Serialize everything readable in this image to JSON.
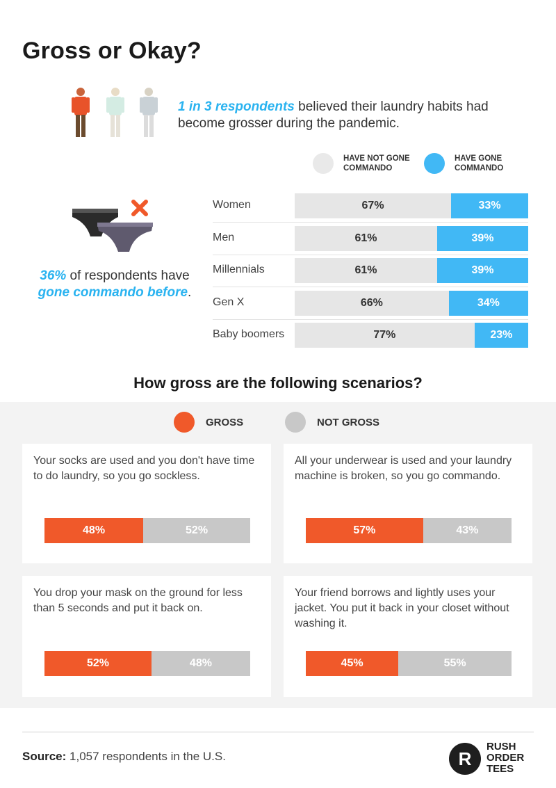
{
  "title": "Gross or Okay?",
  "intro": {
    "highlight": "1 in 3 respondents",
    "rest": " believed their laundry habits had become grosser during the pandemic."
  },
  "legend_top": {
    "not_gone": "HAVE NOT GONE COMMANDO",
    "gone": "HAVE GONE COMMANDO"
  },
  "commando_note": {
    "pct": "36%",
    "text1": " of respondents have ",
    "hl": "gone commando before",
    "end": "."
  },
  "scenarios_title": "How gross are the following scenarios?",
  "legend_bottom": {
    "gross": "GROSS",
    "not_gross": "NOT GROSS"
  },
  "source": {
    "label": "Source:",
    "text": " 1,057 respondents in the U.S."
  },
  "logo": {
    "letter": "R",
    "line1": "RUSH",
    "line2": "ORDER",
    "line3": "TEES"
  },
  "colors": {
    "blue": "#41b8f5",
    "light_grey": "#e6e6e6",
    "orange": "#f0592a",
    "mid_grey": "#c8c8c8"
  },
  "chart_data": [
    {
      "type": "bar",
      "orientation": "horizontal-stacked",
      "categories": [
        "Women",
        "Men",
        "Millennials",
        "Gen X",
        "Baby boomers"
      ],
      "series": [
        {
          "name": "HAVE NOT GONE COMMANDO",
          "values": [
            67,
            61,
            61,
            66,
            77
          ],
          "labels": [
            "67%",
            "61%",
            "61%",
            "66%",
            "77%"
          ]
        },
        {
          "name": "HAVE GONE COMMANDO",
          "values": [
            33,
            39,
            39,
            34,
            23
          ],
          "labels": [
            "33%",
            "39%",
            "39%",
            "34%",
            "23%"
          ]
        }
      ]
    },
    {
      "type": "bar",
      "orientation": "horizontal-stacked",
      "title": "How gross are the following scenarios?",
      "categories": [
        "Your socks are used and you don't have time to do laundry, so you go sockless.",
        "All your underwear is used and your laundry machine is broken, so you go commando.",
        "You drop your mask on the ground for less than 5 seconds and put it back on.",
        "Your friend borrows and lightly uses your jacket. You put it back in your closet without washing it."
      ],
      "series": [
        {
          "name": "GROSS",
          "values": [
            48,
            57,
            52,
            45
          ],
          "labels": [
            "48%",
            "57%",
            "52%",
            "45%"
          ]
        },
        {
          "name": "NOT GROSS",
          "values": [
            52,
            43,
            48,
            55
          ],
          "labels": [
            "52%",
            "43%",
            "48%",
            "55%"
          ]
        }
      ]
    }
  ]
}
